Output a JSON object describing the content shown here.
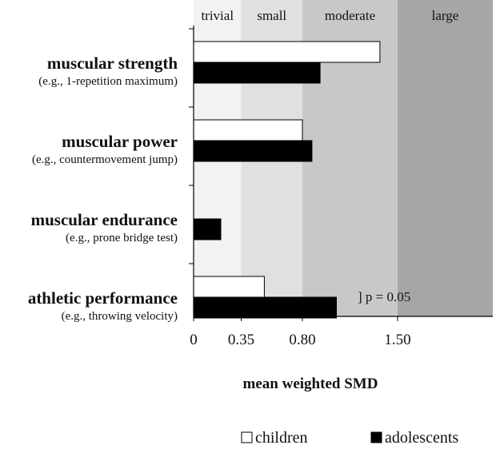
{
  "chart_data": {
    "type": "bar",
    "orientation": "horizontal",
    "xlabel": "mean weighted SMD",
    "xlim": [
      0,
      2.2
    ],
    "ticks": [
      {
        "value": 0,
        "label": "0"
      },
      {
        "value": 0.35,
        "label": "0.35"
      },
      {
        "value": 0.8,
        "label": "0.80"
      },
      {
        "value": 1.5,
        "label": "1.50"
      }
    ],
    "zones": [
      {
        "name": "trivial",
        "from": 0,
        "to": 0.35,
        "color": "#f2f2f2"
      },
      {
        "name": "small",
        "from": 0.35,
        "to": 0.8,
        "color": "#e0e0e0"
      },
      {
        "name": "moderate",
        "from": 0.8,
        "to": 1.5,
        "color": "#c8c8c8"
      },
      {
        "name": "large",
        "from": 1.5,
        "to": 2.2,
        "color": "#a6a6a6"
      }
    ],
    "categories": [
      {
        "label": "muscular strength",
        "sublabel": "(e.g., 1-repetition maximum)"
      },
      {
        "label": "muscular power",
        "sublabel": "(e.g., countermovement jump)"
      },
      {
        "label": "muscular endurance",
        "sublabel": "(e.g., prone bridge test)"
      },
      {
        "label": "athletic performance",
        "sublabel": "(e.g., throwing velocity)"
      }
    ],
    "series": [
      {
        "name": "children",
        "color": "#ffffff",
        "values": [
          1.37,
          0.8,
          null,
          0.52
        ]
      },
      {
        "name": "adolescents",
        "color": "#000000",
        "values": [
          0.93,
          0.87,
          0.2,
          1.05
        ]
      }
    ],
    "annotations": [
      {
        "category_index": 3,
        "text": "] p = 0.05"
      }
    ],
    "legend_position": "bottom-right"
  }
}
